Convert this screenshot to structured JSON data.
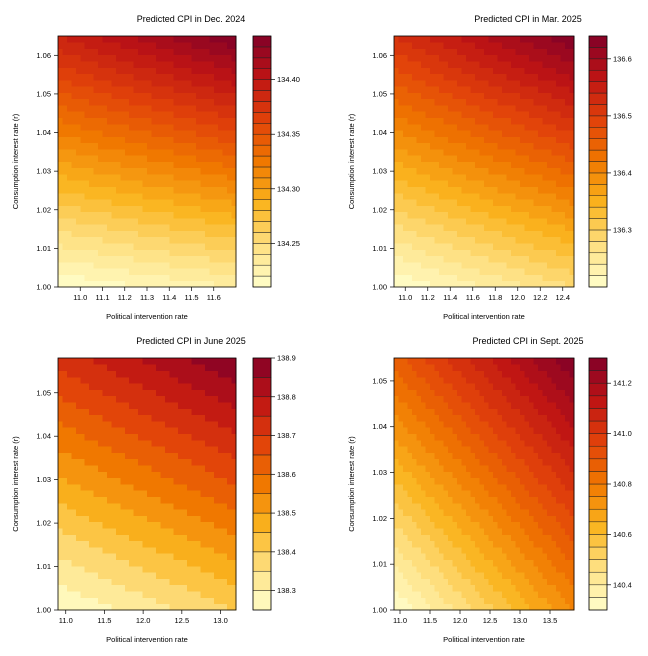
{
  "chart_data": [
    {
      "type": "contour",
      "title": "Predicted CPI in Dec. 2024",
      "xlabel": "Political intervention rate",
      "ylabel": "Consumption interest rate (r)",
      "xlim": [
        10.9,
        11.7
      ],
      "ylim": [
        1.0,
        1.065
      ],
      "x_ticks": [
        11.0,
        11.1,
        11.2,
        11.3,
        11.4,
        11.5,
        11.6
      ],
      "x_tick_labels": [
        "11.0",
        "11.1",
        "11.2",
        "11.3",
        "11.4",
        "11.5",
        "11.6"
      ],
      "y_ticks": [
        1.0,
        1.01,
        1.02,
        1.03,
        1.04,
        1.05,
        1.06
      ],
      "y_tick_labels": [
        "1.00",
        "1.01",
        "1.02",
        "1.03",
        "1.04",
        "1.05",
        "1.06"
      ],
      "level_range": [
        134.21,
        134.44
      ],
      "levels": 23,
      "z_corners": {
        "bottom_left": 134.21,
        "bottom_right": 134.23,
        "top_left": 134.39,
        "top_right": 134.44
      },
      "colorbar_ticks": [
        134.25,
        134.3,
        134.35,
        134.4
      ],
      "colorbar_tick_labels": [
        "134.25",
        "134.30",
        "134.35",
        "134.40"
      ]
    },
    {
      "type": "contour",
      "title": "Predicted CPI in Mar. 2025",
      "xlabel": "Political intervention rate",
      "ylabel": "Consumption interest rate (r)",
      "xlim": [
        10.9,
        12.5
      ],
      "ylim": [
        1.0,
        1.065
      ],
      "x_ticks": [
        11.0,
        11.2,
        11.4,
        11.6,
        11.8,
        12.0,
        12.2,
        12.4
      ],
      "x_tick_labels": [
        "11.0",
        "11.2",
        "11.4",
        "11.6",
        "11.8",
        "12.0",
        "12.2",
        "12.4"
      ],
      "y_ticks": [
        1.0,
        1.01,
        1.02,
        1.03,
        1.04,
        1.05,
        1.06
      ],
      "y_tick_labels": [
        "1.00",
        "1.01",
        "1.02",
        "1.03",
        "1.04",
        "1.05",
        "1.06"
      ],
      "level_range": [
        136.2,
        136.64
      ],
      "levels": 22,
      "z_corners": {
        "bottom_left": 136.2,
        "bottom_right": 136.28,
        "top_left": 136.52,
        "top_right": 136.64
      },
      "colorbar_ticks": [
        136.3,
        136.4,
        136.5,
        136.6
      ],
      "colorbar_tick_labels": [
        "136.3",
        "136.4",
        "136.5",
        "136.6"
      ]
    },
    {
      "type": "contour",
      "title": "Predicted CPI in June 2025",
      "xlabel": "Political intervention rate",
      "ylabel": "Consumption interest rate (r)",
      "xlim": [
        10.9,
        13.2
      ],
      "ylim": [
        1.0,
        1.058
      ],
      "x_ticks": [
        11.0,
        11.5,
        12.0,
        12.5,
        13.0
      ],
      "x_tick_labels": [
        "11.0",
        "11.5",
        "12.0",
        "12.5",
        "13.0"
      ],
      "y_ticks": [
        1.0,
        1.01,
        1.02,
        1.03,
        1.04,
        1.05
      ],
      "y_tick_labels": [
        "1.00",
        "1.01",
        "1.02",
        "1.03",
        "1.04",
        "1.05"
      ],
      "level_range": [
        138.25,
        138.9
      ],
      "levels": 13,
      "z_corners": {
        "bottom_left": 138.25,
        "bottom_right": 138.4,
        "top_left": 138.72,
        "top_right": 138.9
      },
      "colorbar_ticks": [
        138.3,
        138.4,
        138.5,
        138.6,
        138.7,
        138.8,
        138.9
      ],
      "colorbar_tick_labels": [
        "138.3",
        "138.4",
        "138.5",
        "138.6",
        "138.7",
        "138.8",
        "138.9"
      ]
    },
    {
      "type": "contour",
      "title": "Predicted CPI in Sept. 2025",
      "xlabel": "Political intervention rate",
      "ylabel": "Consumption interest rate (r)",
      "xlim": [
        10.9,
        13.9
      ],
      "ylim": [
        1.0,
        1.055
      ],
      "x_ticks": [
        11.0,
        11.5,
        12.0,
        12.5,
        13.0,
        13.5
      ],
      "x_tick_labels": [
        "11.0",
        "11.5",
        "12.0",
        "12.5",
        "13.0",
        "13.5"
      ],
      "y_ticks": [
        1.0,
        1.01,
        1.02,
        1.03,
        1.04,
        1.05
      ],
      "y_tick_labels": [
        "1.00",
        "1.01",
        "1.02",
        "1.03",
        "1.04",
        "1.05"
      ],
      "level_range": [
        140.3,
        141.3
      ],
      "levels": 20,
      "z_corners": {
        "bottom_left": 140.3,
        "bottom_right": 140.75,
        "top_left": 140.88,
        "top_right": 141.3
      },
      "colorbar_ticks": [
        140.4,
        140.6,
        140.8,
        141.0,
        141.2
      ],
      "colorbar_tick_labels": [
        "140.4",
        "140.6",
        "140.8",
        "141.0",
        "141.2"
      ]
    }
  ]
}
